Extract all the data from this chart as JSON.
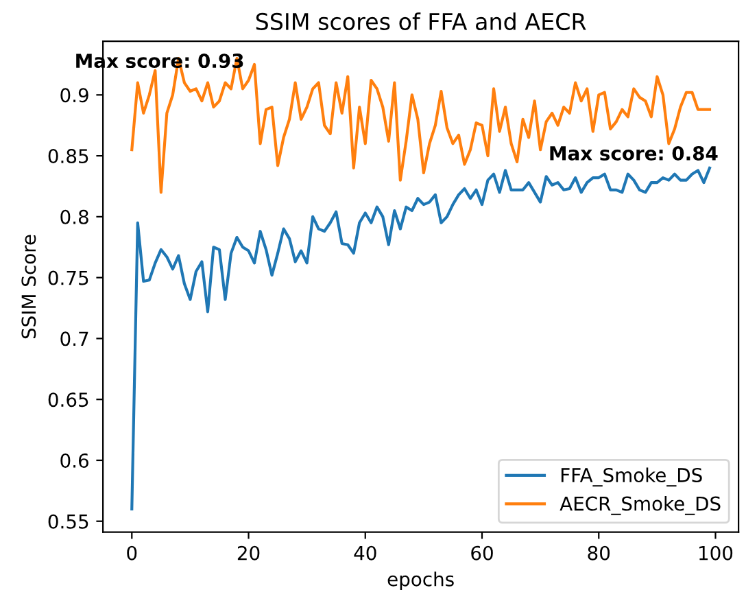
{
  "chart_data": {
    "type": "line",
    "title": "SSIM scores of FFA and AECR",
    "xlabel": "epochs",
    "ylabel": "SSIM Score",
    "x": [
      0,
      1,
      2,
      3,
      4,
      5,
      6,
      7,
      8,
      9,
      10,
      11,
      12,
      13,
      14,
      15,
      16,
      17,
      18,
      19,
      20,
      21,
      22,
      23,
      24,
      25,
      26,
      27,
      28,
      29,
      30,
      31,
      32,
      33,
      34,
      35,
      36,
      37,
      38,
      39,
      40,
      41,
      42,
      43,
      44,
      45,
      46,
      47,
      48,
      49,
      50,
      51,
      52,
      53,
      54,
      55,
      56,
      57,
      58,
      59,
      60,
      61,
      62,
      63,
      64,
      65,
      66,
      67,
      68,
      69,
      70,
      71,
      72,
      73,
      74,
      75,
      76,
      77,
      78,
      79,
      80,
      81,
      82,
      83,
      84,
      85,
      86,
      87,
      88,
      89,
      90,
      91,
      92,
      93,
      94,
      95,
      96,
      97,
      98,
      99
    ],
    "series": [
      {
        "name": "FFA_Smoke_DS",
        "color": "#1f77b4",
        "values": [
          0.56,
          0.795,
          0.747,
          0.748,
          0.762,
          0.773,
          0.767,
          0.757,
          0.768,
          0.745,
          0.732,
          0.755,
          0.763,
          0.722,
          0.775,
          0.773,
          0.732,
          0.77,
          0.783,
          0.775,
          0.772,
          0.762,
          0.788,
          0.773,
          0.752,
          0.77,
          0.79,
          0.782,
          0.763,
          0.772,
          0.762,
          0.8,
          0.79,
          0.788,
          0.795,
          0.804,
          0.778,
          0.777,
          0.77,
          0.795,
          0.803,
          0.795,
          0.808,
          0.8,
          0.777,
          0.805,
          0.79,
          0.808,
          0.805,
          0.815,
          0.81,
          0.812,
          0.818,
          0.795,
          0.8,
          0.81,
          0.818,
          0.823,
          0.815,
          0.822,
          0.81,
          0.83,
          0.835,
          0.82,
          0.838,
          0.822,
          0.822,
          0.822,
          0.828,
          0.82,
          0.812,
          0.833,
          0.826,
          0.828,
          0.822,
          0.823,
          0.832,
          0.82,
          0.828,
          0.832,
          0.832,
          0.835,
          0.822,
          0.822,
          0.82,
          0.835,
          0.83,
          0.822,
          0.82,
          0.828,
          0.828,
          0.832,
          0.83,
          0.835,
          0.83,
          0.83,
          0.835,
          0.838,
          0.828,
          0.84
        ]
      },
      {
        "name": "AECR_Smoke_DS",
        "color": "#ff7f0e",
        "values": [
          0.855,
          0.91,
          0.885,
          0.9,
          0.92,
          0.82,
          0.885,
          0.9,
          0.93,
          0.91,
          0.903,
          0.905,
          0.895,
          0.91,
          0.89,
          0.895,
          0.91,
          0.905,
          0.93,
          0.905,
          0.912,
          0.925,
          0.86,
          0.888,
          0.89,
          0.842,
          0.865,
          0.88,
          0.91,
          0.88,
          0.89,
          0.905,
          0.91,
          0.875,
          0.868,
          0.91,
          0.885,
          0.915,
          0.84,
          0.89,
          0.86,
          0.912,
          0.905,
          0.89,
          0.862,
          0.91,
          0.83,
          0.862,
          0.9,
          0.88,
          0.836,
          0.86,
          0.875,
          0.903,
          0.873,
          0.86,
          0.867,
          0.843,
          0.855,
          0.877,
          0.875,
          0.85,
          0.905,
          0.87,
          0.89,
          0.86,
          0.845,
          0.88,
          0.865,
          0.895,
          0.855,
          0.878,
          0.885,
          0.875,
          0.89,
          0.885,
          0.91,
          0.895,
          0.905,
          0.87,
          0.9,
          0.902,
          0.872,
          0.878,
          0.888,
          0.882,
          0.905,
          0.898,
          0.895,
          0.882,
          0.915,
          0.9,
          0.86,
          0.872,
          0.89,
          0.902,
          0.902,
          0.888,
          0.888,
          0.888
        ]
      }
    ],
    "xlim": [
      -4.95,
      103.95
    ],
    "ylim": [
      0.541,
      0.944
    ],
    "xticks": [
      0,
      20,
      40,
      60,
      80,
      100
    ],
    "yticks": [
      0.55,
      0.6,
      0.65,
      0.7,
      0.75,
      0.8,
      0.85,
      0.9
    ],
    "annotations": [
      {
        "text": "Max score: 0.93",
        "x": 8,
        "y": 0.93
      },
      {
        "text": "Max score: 0.84",
        "x": 99,
        "y": 0.84
      }
    ],
    "legend": "bottom right",
    "grid": false
  }
}
